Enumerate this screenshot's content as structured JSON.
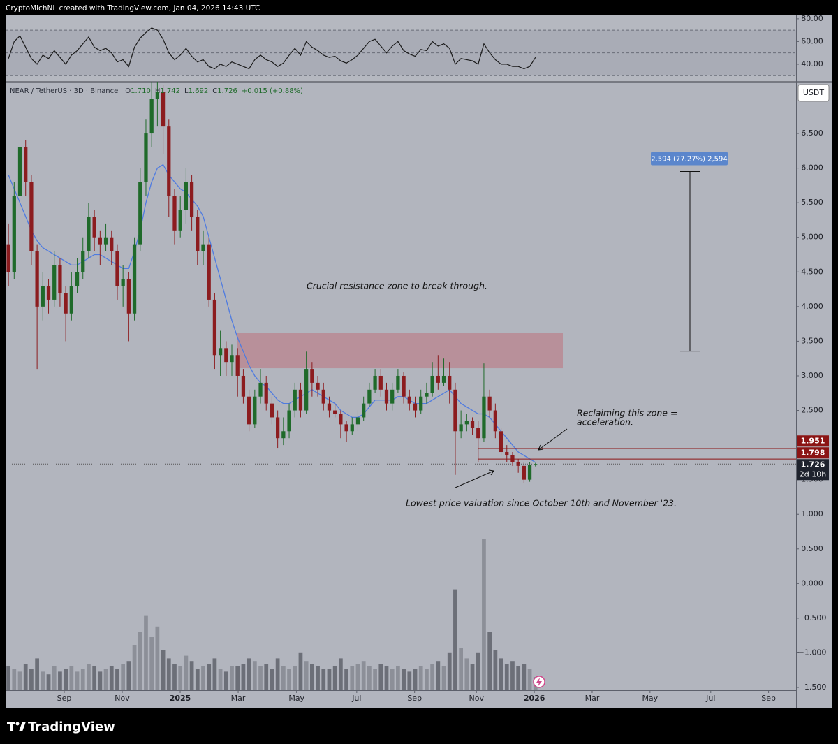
{
  "header": "CryptoMichNL created with TradingView.com, Jan 04, 2026 14:43 UTC",
  "footer_logo": "TradingView",
  "chart_data": {
    "type": "candlestick",
    "symbol": "NEAR / TetherUS · 3D · Binance",
    "legend": [
      {
        "key": "O",
        "value": 1.71,
        "label": "1.710"
      },
      {
        "key": "H",
        "value": 1.742,
        "label": "1.742"
      },
      {
        "key": "L",
        "value": 1.692,
        "label": "1.692"
      },
      {
        "key": "C",
        "value": 1.726,
        "label": "1.726"
      }
    ],
    "change": "+0.015 (+0.88%)",
    "currency": "USDT",
    "xlim": [
      -0.5,
      137.5
    ],
    "xticks": [
      {
        "value": 9.74,
        "label": "Sep"
      },
      {
        "value": 19.86,
        "label": "Nov"
      },
      {
        "value": 29.98,
        "label": "2025"
      },
      {
        "value": 40.1,
        "label": "Mar"
      },
      {
        "value": 50.3,
        "label": "May"
      },
      {
        "value": 60.8,
        "label": "Jul"
      },
      {
        "value": 70.9,
        "label": "Sep"
      },
      {
        "value": 81.7,
        "label": "Nov"
      },
      {
        "value": 91.8,
        "label": "2026"
      },
      {
        "value": 101.9,
        "label": "Mar"
      },
      {
        "value": 112.0,
        "label": "May"
      },
      {
        "value": 122.6,
        "label": "Jul"
      },
      {
        "value": 132.7,
        "label": "Sep"
      }
    ],
    "ylim": [
      -1.54,
      7.237
    ],
    "yticks": [
      {
        "value": 6.5,
        "label": "6.500"
      },
      {
        "value": 6,
        "label": "6.000"
      },
      {
        "value": 5.5,
        "label": "5.500"
      },
      {
        "value": 5,
        "label": "5.000"
      },
      {
        "value": 4.5,
        "label": "4.500"
      },
      {
        "value": 4,
        "label": "4.000"
      },
      {
        "value": 3.5,
        "label": "3.500"
      },
      {
        "value": 3,
        "label": "3.000"
      },
      {
        "value": 2.5,
        "label": "2.500"
      },
      {
        "value": 1.5,
        "label": "1.500"
      },
      {
        "value": 1,
        "label": "1.000"
      },
      {
        "value": 0.5,
        "label": "0.500"
      },
      {
        "value": 0,
        "label": "0.000"
      },
      {
        "value": -0.5,
        "label": "−0.500"
      },
      {
        "value": -1,
        "label": "−1.000"
      },
      {
        "value": -1.5,
        "label": "−1.500"
      }
    ],
    "up_color": "#1f6a2a",
    "down_color": "#8c1c1f",
    "open": [
      4.9,
      4.5,
      5.6,
      6.3,
      5.8,
      4.8,
      4.0,
      4.3,
      4.1,
      4.6,
      4.2,
      3.9,
      4.3,
      4.5,
      4.8,
      5.3,
      5.0,
      4.9,
      5.0,
      4.8,
      4.3,
      4.4,
      3.9,
      4.9,
      5.8,
      6.5,
      7.0,
      7.1,
      6.6,
      5.6,
      5.1,
      5.4,
      5.8,
      5.3,
      4.8,
      4.9,
      4.1,
      3.3,
      3.4,
      3.2,
      3.3,
      3.0,
      2.7,
      2.3,
      2.7,
      2.9,
      2.6,
      2.4,
      2.1,
      2.2,
      2.5,
      2.8,
      2.5,
      3.1,
      2.9,
      2.8,
      2.6,
      2.5,
      2.45,
      2.3,
      2.2,
      2.3,
      2.4,
      2.6,
      2.8,
      3.0,
      2.8,
      2.6,
      2.8,
      3.0,
      2.7,
      2.6,
      2.5,
      2.7,
      2.75,
      3.0,
      2.9,
      3.0,
      2.8,
      2.2,
      2.3,
      2.35,
      2.25,
      2.1,
      2.7,
      2.5,
      2.2,
      1.9,
      1.85,
      1.75,
      1.7,
      1.5,
      1.71
    ],
    "high": [
      5.2,
      5.8,
      6.5,
      6.4,
      5.9,
      4.9,
      4.5,
      4.4,
      4.8,
      4.7,
      4.3,
      4.5,
      4.7,
      5.0,
      5.5,
      5.4,
      5.1,
      5.2,
      5.1,
      4.9,
      4.6,
      4.5,
      5.0,
      6.0,
      6.7,
      7.3,
      7.4,
      7.2,
      6.7,
      5.7,
      5.6,
      6.0,
      5.9,
      5.4,
      5.1,
      5.0,
      4.2,
      3.65,
      3.5,
      3.45,
      3.4,
      3.1,
      2.8,
      2.8,
      3.1,
      3.0,
      2.7,
      2.5,
      2.4,
      2.6,
      2.9,
      2.9,
      3.35,
      3.2,
      3.0,
      2.9,
      2.7,
      2.6,
      2.5,
      2.35,
      2.4,
      2.5,
      2.7,
      2.9,
      3.1,
      3.1,
      2.9,
      2.9,
      3.1,
      3.05,
      2.8,
      2.7,
      2.8,
      2.9,
      3.2,
      3.3,
      3.25,
      3.2,
      2.9,
      2.5,
      2.45,
      2.4,
      2.35,
      3.18,
      2.8,
      2.6,
      2.25,
      2.0,
      1.9,
      1.8,
      1.75,
      1.75,
      1.742
    ],
    "low": [
      4.3,
      4.4,
      5.4,
      5.6,
      4.6,
      3.1,
      3.8,
      3.9,
      4.0,
      4.0,
      3.5,
      3.8,
      4.2,
      4.4,
      4.7,
      4.8,
      4.6,
      4.8,
      4.6,
      4.1,
      4.0,
      3.5,
      3.8,
      4.8,
      5.6,
      6.3,
      6.6,
      6.2,
      5.3,
      4.9,
      5.0,
      5.2,
      5.1,
      4.6,
      4.6,
      4.0,
      3.1,
      3.0,
      3.0,
      3.0,
      2.7,
      2.6,
      2.2,
      2.25,
      2.6,
      2.5,
      2.3,
      1.95,
      2.0,
      2.1,
      2.4,
      2.4,
      2.45,
      2.7,
      2.7,
      2.5,
      2.4,
      2.4,
      2.1,
      2.05,
      2.15,
      2.2,
      2.35,
      2.55,
      2.75,
      2.7,
      2.5,
      2.5,
      2.75,
      2.6,
      2.5,
      2.4,
      2.45,
      2.6,
      2.7,
      2.8,
      2.85,
      2.6,
      1.57,
      2.1,
      2.2,
      2.15,
      1.75,
      2.05,
      2.4,
      2.1,
      1.85,
      1.75,
      1.7,
      1.6,
      1.45,
      1.47,
      1.692
    ],
    "close": [
      4.5,
      5.6,
      6.3,
      5.8,
      4.8,
      4.0,
      4.3,
      4.1,
      4.6,
      4.2,
      3.9,
      4.3,
      4.5,
      4.8,
      5.3,
      5.0,
      4.9,
      5.0,
      4.8,
      4.3,
      4.4,
      3.9,
      4.9,
      5.8,
      6.5,
      7.0,
      7.1,
      6.6,
      5.6,
      5.1,
      5.4,
      5.8,
      5.3,
      4.8,
      4.9,
      4.1,
      3.3,
      3.4,
      3.2,
      3.3,
      3.0,
      2.7,
      2.3,
      2.7,
      2.9,
      2.6,
      2.4,
      2.1,
      2.2,
      2.5,
      2.8,
      2.5,
      3.1,
      2.9,
      2.8,
      2.6,
      2.5,
      2.45,
      2.3,
      2.2,
      2.3,
      2.4,
      2.6,
      2.8,
      3.0,
      2.8,
      2.6,
      2.8,
      3.0,
      2.7,
      2.6,
      2.5,
      2.7,
      2.75,
      3.0,
      2.9,
      3.0,
      2.8,
      2.2,
      2.3,
      2.35,
      2.25,
      2.1,
      2.7,
      2.5,
      2.2,
      1.9,
      1.85,
      1.75,
      1.7,
      1.5,
      1.71,
      1.726
    ],
    "ma_color": "#4f7be0",
    "ma_values": [
      5.9,
      5.7,
      5.5,
      5.3,
      5.1,
      4.95,
      4.85,
      4.8,
      4.75,
      4.7,
      4.65,
      4.6,
      4.6,
      4.65,
      4.7,
      4.75,
      4.75,
      4.7,
      4.65,
      4.6,
      4.55,
      4.55,
      4.8,
      5.1,
      5.5,
      5.8,
      6.0,
      6.05,
      5.9,
      5.8,
      5.7,
      5.65,
      5.55,
      5.45,
      5.3,
      5.0,
      4.7,
      4.4,
      4.1,
      3.8,
      3.55,
      3.35,
      3.15,
      3.0,
      2.9,
      2.85,
      2.75,
      2.65,
      2.6,
      2.6,
      2.65,
      2.7,
      2.75,
      2.8,
      2.75,
      2.7,
      2.65,
      2.6,
      2.5,
      2.45,
      2.4,
      2.4,
      2.45,
      2.55,
      2.65,
      2.65,
      2.65,
      2.65,
      2.7,
      2.7,
      2.65,
      2.6,
      2.6,
      2.6,
      2.65,
      2.7,
      2.75,
      2.8,
      2.7,
      2.6,
      2.55,
      2.5,
      2.45,
      2.45,
      2.4,
      2.3,
      2.2,
      2.1,
      2.0,
      1.9,
      1.85,
      1.8,
      1.75
    ],
    "volume": {
      "vlim": [
        0,
        60
      ],
      "up_color": "#8c8f98",
      "down_color": "#6c6f78",
      "values": [
        9,
        8,
        7,
        10,
        8,
        12,
        7,
        6,
        9,
        7,
        8,
        9,
        7,
        8,
        10,
        9,
        7,
        8,
        9,
        8,
        10,
        11,
        17,
        22,
        28,
        20,
        24,
        15,
        12,
        10,
        9,
        13,
        11,
        8,
        9,
        10,
        12,
        8,
        7,
        9,
        9,
        10,
        12,
        11,
        9,
        10,
        8,
        12,
        9,
        8,
        9,
        14,
        11,
        10,
        9,
        8,
        8,
        9,
        12,
        8,
        9,
        10,
        11,
        9,
        8,
        10,
        9,
        8,
        9,
        8,
        7,
        8,
        9,
        8,
        10,
        11,
        9,
        14,
        38,
        16,
        12,
        10,
        14,
        57,
        22,
        15,
        12,
        10,
        11,
        9,
        10,
        8,
        5
      ]
    },
    "rsi": {
      "ylim": [
        24.6,
        83
      ],
      "yticks": [
        {
          "value": 80,
          "label": "80.00"
        },
        {
          "value": 60,
          "label": "60.00"
        },
        {
          "value": 40,
          "label": "40.00"
        }
      ],
      "bands": [
        30,
        50,
        70
      ],
      "color": "#1a1a1a",
      "values": [
        45,
        60,
        65,
        55,
        45,
        40,
        48,
        45,
        52,
        46,
        40,
        48,
        52,
        58,
        64,
        55,
        52,
        54,
        50,
        42,
        44,
        38,
        55,
        63,
        68,
        72,
        70,
        62,
        50,
        44,
        48,
        54,
        47,
        42,
        44,
        38,
        36,
        40,
        38,
        42,
        40,
        38,
        36,
        44,
        48,
        44,
        42,
        38,
        41,
        48,
        54,
        48,
        60,
        55,
        52,
        48,
        46,
        47,
        43,
        41,
        44,
        48,
        54,
        60,
        62,
        56,
        50,
        56,
        60,
        52,
        49,
        47,
        53,
        52,
        60,
        56,
        58,
        54,
        40,
        45,
        44,
        43,
        40,
        58,
        50,
        44,
        40,
        40,
        38,
        38,
        36,
        38,
        46
      ]
    },
    "zone": {
      "from": 3.11,
      "to": 3.625,
      "color": "#b88a94"
    },
    "levels": [
      {
        "value": 1.951,
        "label": "1.951",
        "color": "#8b1414"
      },
      {
        "value": 1.798,
        "label": "1.798",
        "color": "#8b1414"
      }
    ],
    "last_price": {
      "value": 1.726,
      "label": "1.726",
      "countdown": "2d 10h",
      "color": "#1e222d"
    },
    "measure": {
      "from": 3.357,
      "to": 5.951,
      "label": "2.594 (77.27%) 2,594",
      "color": "#5b86cc"
    },
    "annotations": [
      "Crucial resistance zone to break through.",
      "Reclaiming this zone =",
      "acceleration.",
      "Lowest price valuation since October 10th and November '23."
    ]
  }
}
